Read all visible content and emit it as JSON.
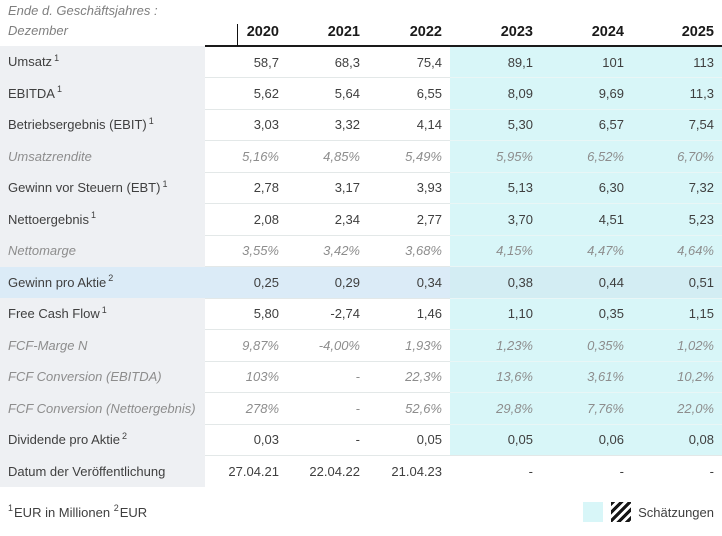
{
  "header": {
    "title_line1": "Ende d. Geschäftsjahres :",
    "title_line2": "Dezember"
  },
  "chart_data": {
    "type": "table",
    "title": "Ende d. Geschäftsjahres : Dezember",
    "categories": [
      "2020",
      "2021",
      "2022",
      "2023",
      "2024",
      "2025"
    ],
    "estimate_start_col": 3,
    "series": [
      {
        "name": "Umsatz",
        "sup": "1",
        "style": "normal",
        "values": [
          "58,7",
          "68,3",
          "75,4",
          "89,1",
          "101",
          "113"
        ]
      },
      {
        "name": "EBITDA",
        "sup": "1",
        "style": "normal",
        "values": [
          "5,62",
          "5,64",
          "6,55",
          "8,09",
          "9,69",
          "11,3"
        ]
      },
      {
        "name": "Betriebsergebnis (EBIT)",
        "sup": "1",
        "style": "normal",
        "values": [
          "3,03",
          "3,32",
          "4,14",
          "5,30",
          "6,57",
          "7,54"
        ]
      },
      {
        "name": "Umsatzrendite",
        "sup": "",
        "style": "ratio",
        "values": [
          "5,16%",
          "4,85%",
          "5,49%",
          "5,95%",
          "6,52%",
          "6,70%"
        ]
      },
      {
        "name": "Gewinn vor Steuern (EBT)",
        "sup": "1",
        "style": "normal",
        "values": [
          "2,78",
          "3,17",
          "3,93",
          "5,13",
          "6,30",
          "7,32"
        ]
      },
      {
        "name": "Nettoergebnis",
        "sup": "1",
        "style": "normal",
        "values": [
          "2,08",
          "2,34",
          "2,77",
          "3,70",
          "4,51",
          "5,23"
        ]
      },
      {
        "name": "Nettomarge",
        "sup": "",
        "style": "ratio",
        "values": [
          "3,55%",
          "3,42%",
          "3,68%",
          "4,15%",
          "4,47%",
          "4,64%"
        ]
      },
      {
        "name": "Gewinn pro Aktie",
        "sup": "2",
        "style": "highlight",
        "values": [
          "0,25",
          "0,29",
          "0,34",
          "0,38",
          "0,44",
          "0,51"
        ]
      },
      {
        "name": "Free Cash Flow",
        "sup": "1",
        "style": "normal",
        "values": [
          "5,80",
          "-2,74",
          "1,46",
          "1,10",
          "0,35",
          "1,15"
        ]
      },
      {
        "name": "FCF-Marge N",
        "sup": "",
        "style": "ratio",
        "values": [
          "9,87%",
          "-4,00%",
          "1,93%",
          "1,23%",
          "0,35%",
          "1,02%"
        ]
      },
      {
        "name": "FCF Conversion (EBITDA)",
        "sup": "",
        "style": "ratio",
        "values": [
          "103%",
          "-",
          "22,3%",
          "13,6%",
          "3,61%",
          "10,2%"
        ]
      },
      {
        "name": "FCF Conversion (Nettoergebnis)",
        "sup": "",
        "style": "ratio",
        "values": [
          "278%",
          "-",
          "52,6%",
          "29,8%",
          "7,76%",
          "22,0%"
        ]
      },
      {
        "name": "Dividende pro Aktie",
        "sup": "2",
        "style": "normal",
        "values": [
          "0,03",
          "-",
          "0,05",
          "0,05",
          "0,06",
          "0,08"
        ]
      },
      {
        "name": "Datum der Veröffentlichung",
        "sup": "",
        "style": "normal",
        "no_estimate_bg": true,
        "values": [
          "27.04.21",
          "22.04.22",
          "21.04.23",
          "-",
          "-",
          "-"
        ]
      }
    ]
  },
  "footer": {
    "note1_sup": "1",
    "note1_text": "EUR in Millionen",
    "note2_sup": "2",
    "note2_text": "EUR",
    "legend_label": "Schätzungen"
  },
  "colors": {
    "label_bg": "#eef0f3",
    "estimate_bg": "#d8f6f8",
    "highlight_bg": "#dbebf7",
    "highlight_est_bg": "#d3edf3",
    "row_border": "#e3e8e8",
    "text_primary": "#3f3f3f",
    "text_muted": "#8d8d8d"
  }
}
